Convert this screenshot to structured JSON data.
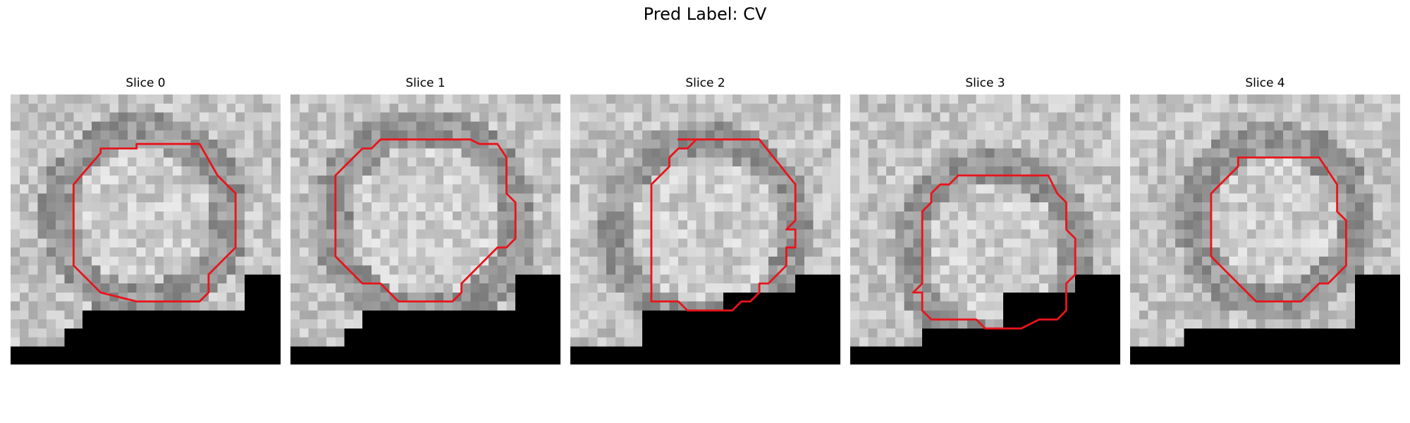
{
  "figure": {
    "title": "Pred Label: CV"
  },
  "slices": [
    {
      "label": "Slice 0"
    },
    {
      "label": "Slice 1"
    },
    {
      "label": "Slice 2"
    },
    {
      "label": "Slice 3"
    },
    {
      "label": "Slice 4"
    }
  ],
  "colors": {
    "contour": "#e8141b",
    "mask": "#000000"
  }
}
